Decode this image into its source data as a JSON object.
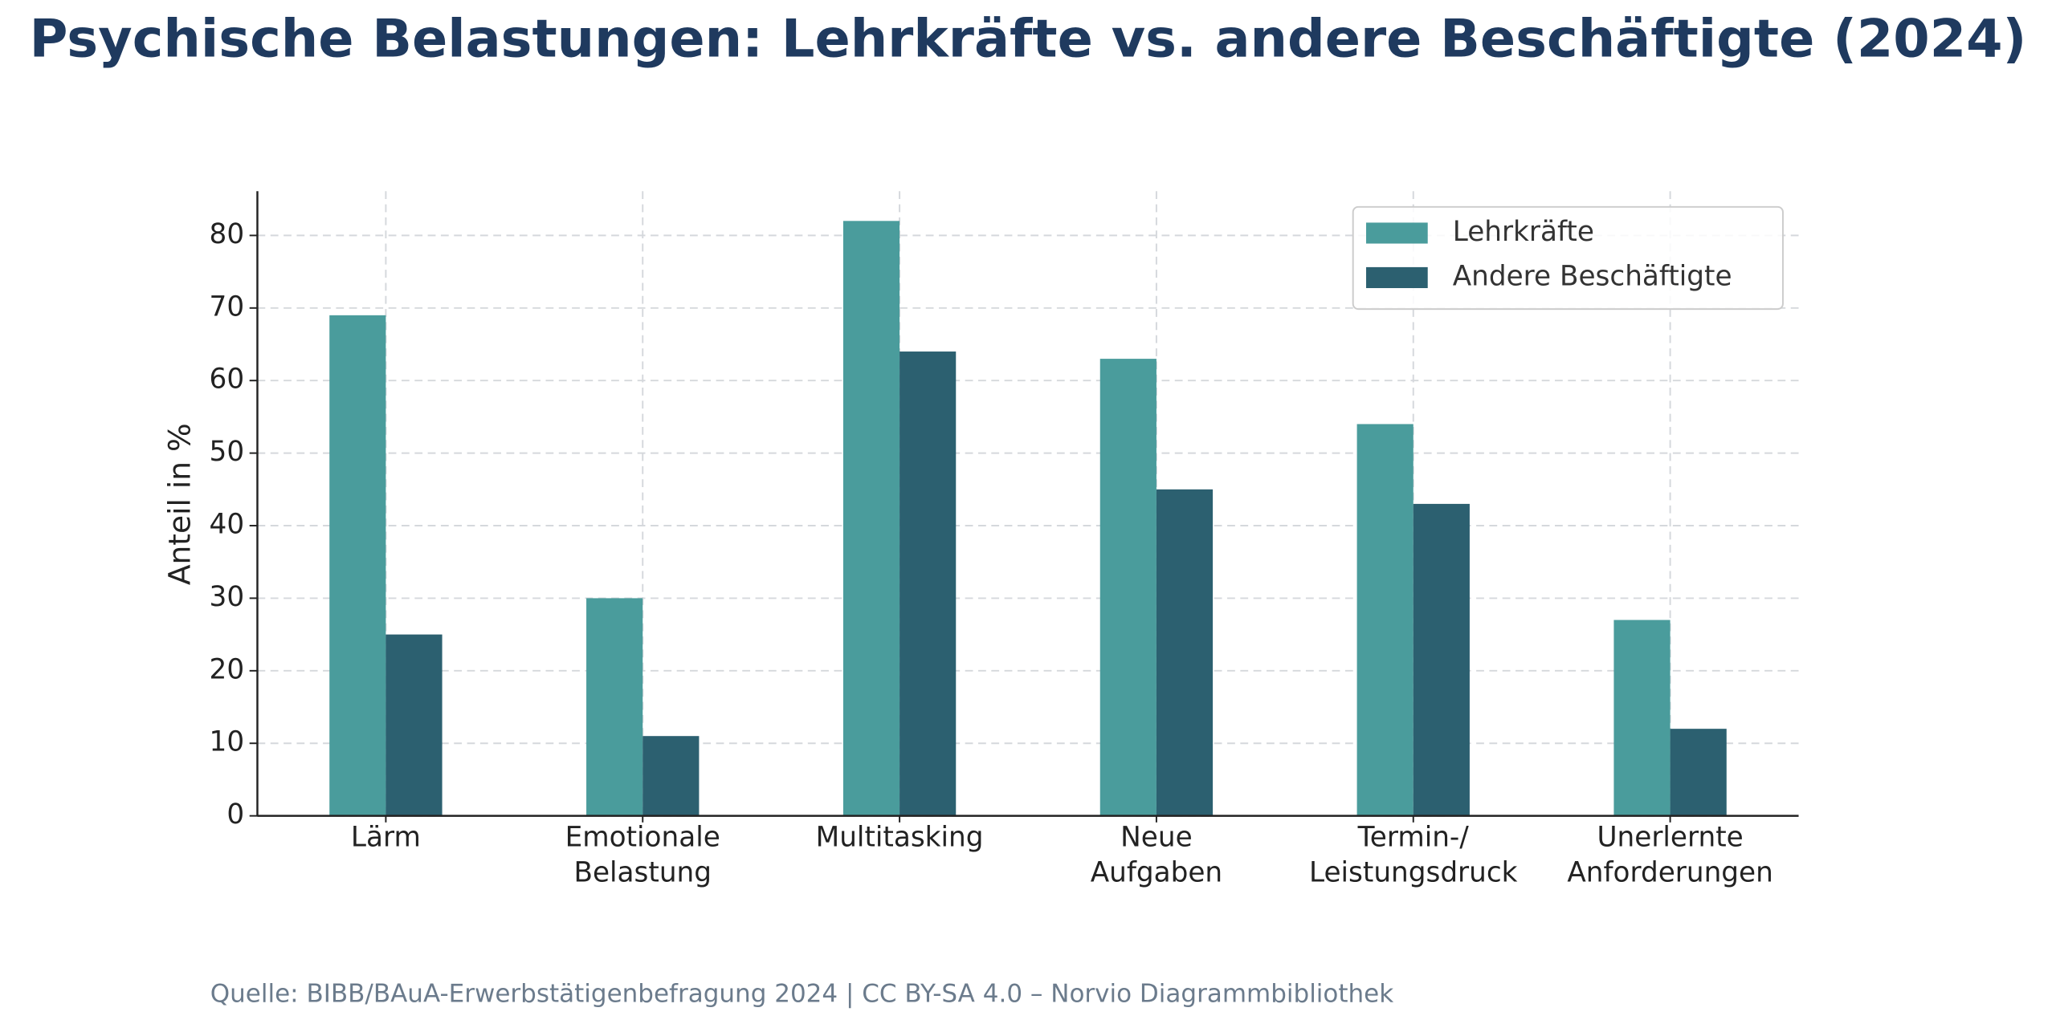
{
  "chart_data": {
    "type": "bar",
    "title": "Psychische Belastungen: Lehrkräfte vs. andere Beschäftigte (2024)",
    "categories": [
      "Lärm",
      "Emotionale\nBelastung",
      "Multitasking",
      "Neue\nAufgaben",
      "Termin-/\nLeistungsdruck",
      "Unerlernte\nAnforderungen"
    ],
    "series": [
      {
        "name": "Lehrkräfte",
        "color": "#4a9c9c",
        "values": [
          69,
          30,
          82,
          63,
          54,
          27
        ]
      },
      {
        "name": "Andere Beschäftigte",
        "color": "#2c6070",
        "values": [
          25,
          11,
          64,
          45,
          43,
          12
        ]
      }
    ],
    "ylabel": "Anteil in %",
    "ylim": [
      0,
      86.1
    ],
    "yticks": [
      0,
      10,
      20,
      30,
      40,
      50,
      60,
      70,
      80
    ],
    "grid": true,
    "legend": "upper right",
    "source": "Quelle: BIBB/BAuA-Erwerbstätigenbefragung 2024 | CC BY-SA 4.0 – Norvio Diagrammbibliothek"
  }
}
